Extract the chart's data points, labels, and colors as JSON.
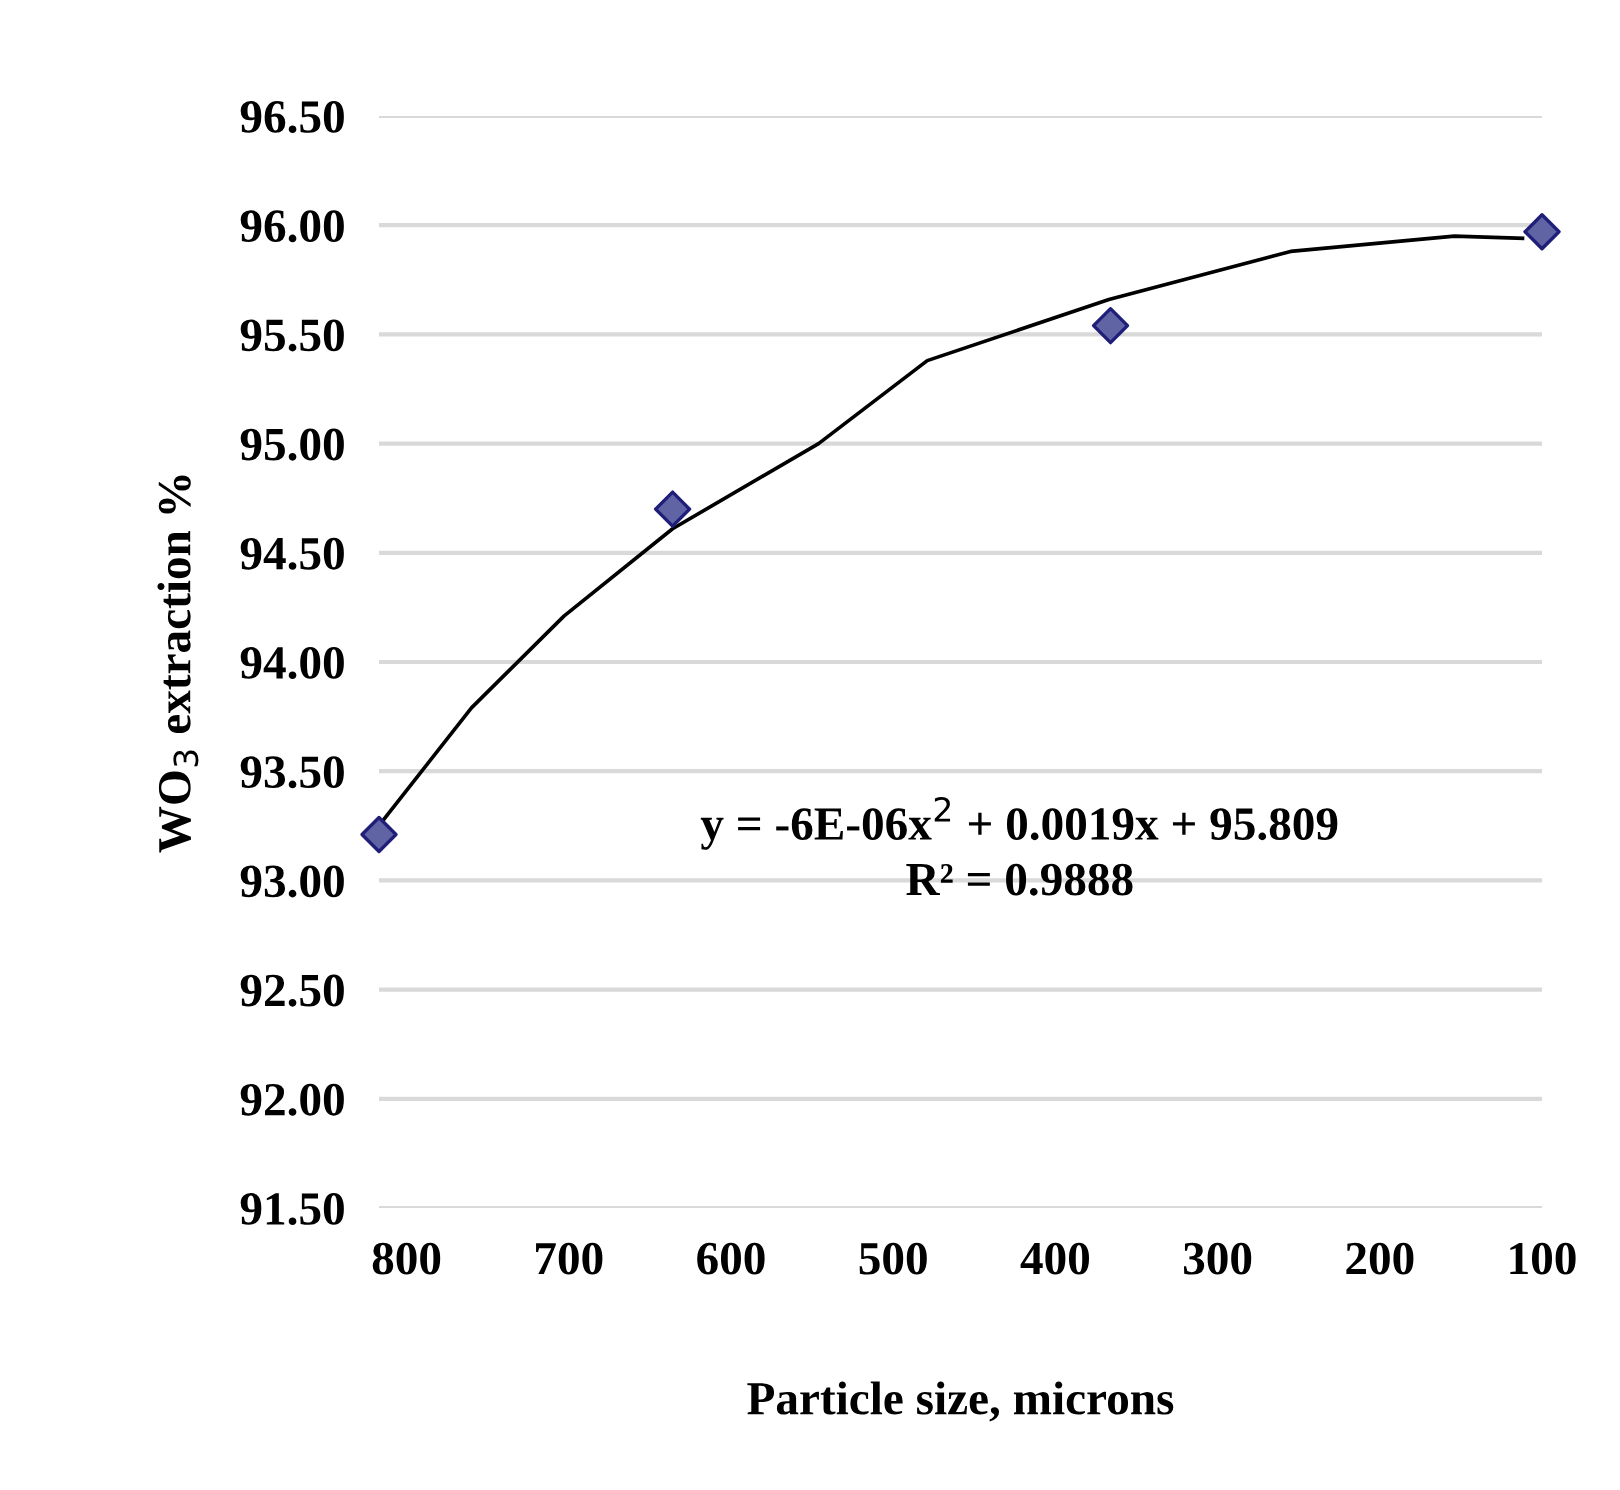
{
  "chart_data": {
    "type": "scatter",
    "xlabel": "Particle size, microns",
    "ylabel": "WO$_{3}$ extraction %",
    "x": [
      817,
      636,
      366,
      100
    ],
    "series": [
      {
        "color": "#6064a4",
        "values": [
          93.21,
          94.7,
          95.54,
          95.97
        ],
        "marker": "diamond"
      },
      {
        "type": "line",
        "color": "#000000",
        "x": [
          815,
          760,
          703,
          636,
          546,
          479,
          367,
          255,
          154,
          112
        ],
        "values": [
          93.27,
          93.79,
          94.21,
          94.61,
          95.0,
          95.38,
          95.66,
          95.88,
          95.95,
          95.94
        ],
        "marker": "none",
        "line_style": "solid"
      }
    ],
    "annotations": [
      "y = -6E-06x$^{2}$ + 0.0019x + 95.809",
      "R² = 0.9888"
    ],
    "xlim": [
      817,
      100
    ],
    "xticks": [
      800,
      700,
      600,
      500,
      400,
      300,
      200,
      100
    ],
    "ylim": [
      91.5,
      96.5
    ],
    "yticks": [
      {
        "value": 91.5,
        "label": "91.50"
      },
      {
        "value": 92.0,
        "label": "92.00"
      },
      {
        "value": 92.5,
        "label": "92.50"
      },
      {
        "value": 93.0,
        "label": "93.00"
      },
      {
        "value": 93.5,
        "label": "93.50"
      },
      {
        "value": 94.0,
        "label": "94.00"
      },
      {
        "value": 94.5,
        "label": "94.50"
      },
      {
        "value": 95.0,
        "label": "95.00"
      },
      {
        "value": 95.5,
        "label": "95.50"
      },
      {
        "value": 96.0,
        "label": "96.00"
      },
      {
        "value": 96.5,
        "label": "96.50"
      }
    ],
    "grid": "y",
    "legend": false
  }
}
